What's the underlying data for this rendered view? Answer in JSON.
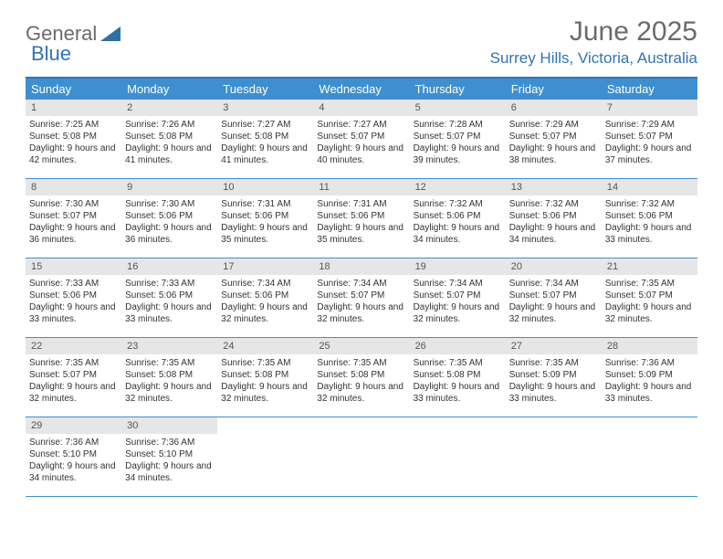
{
  "brand": {
    "text1": "General",
    "text2": "Blue"
  },
  "title": "June 2025",
  "location": "Surrey Hills, Victoria, Australia",
  "colors": {
    "header_bar": "#3e8fd0",
    "accent": "#3273b5",
    "daynum_bg": "#e6e6e6",
    "text": "#333333",
    "muted": "#6b6b6b",
    "white": "#ffffff"
  },
  "day_headers": [
    "Sunday",
    "Monday",
    "Tuesday",
    "Wednesday",
    "Thursday",
    "Friday",
    "Saturday"
  ],
  "weeks": [
    [
      {
        "n": "1",
        "sunrise": "7:25 AM",
        "sunset": "5:08 PM",
        "daylight": "9 hours and 42 minutes."
      },
      {
        "n": "2",
        "sunrise": "7:26 AM",
        "sunset": "5:08 PM",
        "daylight": "9 hours and 41 minutes."
      },
      {
        "n": "3",
        "sunrise": "7:27 AM",
        "sunset": "5:08 PM",
        "daylight": "9 hours and 41 minutes."
      },
      {
        "n": "4",
        "sunrise": "7:27 AM",
        "sunset": "5:07 PM",
        "daylight": "9 hours and 40 minutes."
      },
      {
        "n": "5",
        "sunrise": "7:28 AM",
        "sunset": "5:07 PM",
        "daylight": "9 hours and 39 minutes."
      },
      {
        "n": "6",
        "sunrise": "7:29 AM",
        "sunset": "5:07 PM",
        "daylight": "9 hours and 38 minutes."
      },
      {
        "n": "7",
        "sunrise": "7:29 AM",
        "sunset": "5:07 PM",
        "daylight": "9 hours and 37 minutes."
      }
    ],
    [
      {
        "n": "8",
        "sunrise": "7:30 AM",
        "sunset": "5:07 PM",
        "daylight": "9 hours and 36 minutes."
      },
      {
        "n": "9",
        "sunrise": "7:30 AM",
        "sunset": "5:06 PM",
        "daylight": "9 hours and 36 minutes."
      },
      {
        "n": "10",
        "sunrise": "7:31 AM",
        "sunset": "5:06 PM",
        "daylight": "9 hours and 35 minutes."
      },
      {
        "n": "11",
        "sunrise": "7:31 AM",
        "sunset": "5:06 PM",
        "daylight": "9 hours and 35 minutes."
      },
      {
        "n": "12",
        "sunrise": "7:32 AM",
        "sunset": "5:06 PM",
        "daylight": "9 hours and 34 minutes."
      },
      {
        "n": "13",
        "sunrise": "7:32 AM",
        "sunset": "5:06 PM",
        "daylight": "9 hours and 34 minutes."
      },
      {
        "n": "14",
        "sunrise": "7:32 AM",
        "sunset": "5:06 PM",
        "daylight": "9 hours and 33 minutes."
      }
    ],
    [
      {
        "n": "15",
        "sunrise": "7:33 AM",
        "sunset": "5:06 PM",
        "daylight": "9 hours and 33 minutes."
      },
      {
        "n": "16",
        "sunrise": "7:33 AM",
        "sunset": "5:06 PM",
        "daylight": "9 hours and 33 minutes."
      },
      {
        "n": "17",
        "sunrise": "7:34 AM",
        "sunset": "5:06 PM",
        "daylight": "9 hours and 32 minutes."
      },
      {
        "n": "18",
        "sunrise": "7:34 AM",
        "sunset": "5:07 PM",
        "daylight": "9 hours and 32 minutes."
      },
      {
        "n": "19",
        "sunrise": "7:34 AM",
        "sunset": "5:07 PM",
        "daylight": "9 hours and 32 minutes."
      },
      {
        "n": "20",
        "sunrise": "7:34 AM",
        "sunset": "5:07 PM",
        "daylight": "9 hours and 32 minutes."
      },
      {
        "n": "21",
        "sunrise": "7:35 AM",
        "sunset": "5:07 PM",
        "daylight": "9 hours and 32 minutes."
      }
    ],
    [
      {
        "n": "22",
        "sunrise": "7:35 AM",
        "sunset": "5:07 PM",
        "daylight": "9 hours and 32 minutes."
      },
      {
        "n": "23",
        "sunrise": "7:35 AM",
        "sunset": "5:08 PM",
        "daylight": "9 hours and 32 minutes."
      },
      {
        "n": "24",
        "sunrise": "7:35 AM",
        "sunset": "5:08 PM",
        "daylight": "9 hours and 32 minutes."
      },
      {
        "n": "25",
        "sunrise": "7:35 AM",
        "sunset": "5:08 PM",
        "daylight": "9 hours and 32 minutes."
      },
      {
        "n": "26",
        "sunrise": "7:35 AM",
        "sunset": "5:08 PM",
        "daylight": "9 hours and 33 minutes."
      },
      {
        "n": "27",
        "sunrise": "7:35 AM",
        "sunset": "5:09 PM",
        "daylight": "9 hours and 33 minutes."
      },
      {
        "n": "28",
        "sunrise": "7:36 AM",
        "sunset": "5:09 PM",
        "daylight": "9 hours and 33 minutes."
      }
    ],
    [
      {
        "n": "29",
        "sunrise": "7:36 AM",
        "sunset": "5:10 PM",
        "daylight": "9 hours and 34 minutes."
      },
      {
        "n": "30",
        "sunrise": "7:36 AM",
        "sunset": "5:10 PM",
        "daylight": "9 hours and 34 minutes."
      },
      null,
      null,
      null,
      null,
      null
    ]
  ],
  "labels": {
    "sunrise": "Sunrise:",
    "sunset": "Sunset:",
    "daylight": "Daylight:"
  }
}
